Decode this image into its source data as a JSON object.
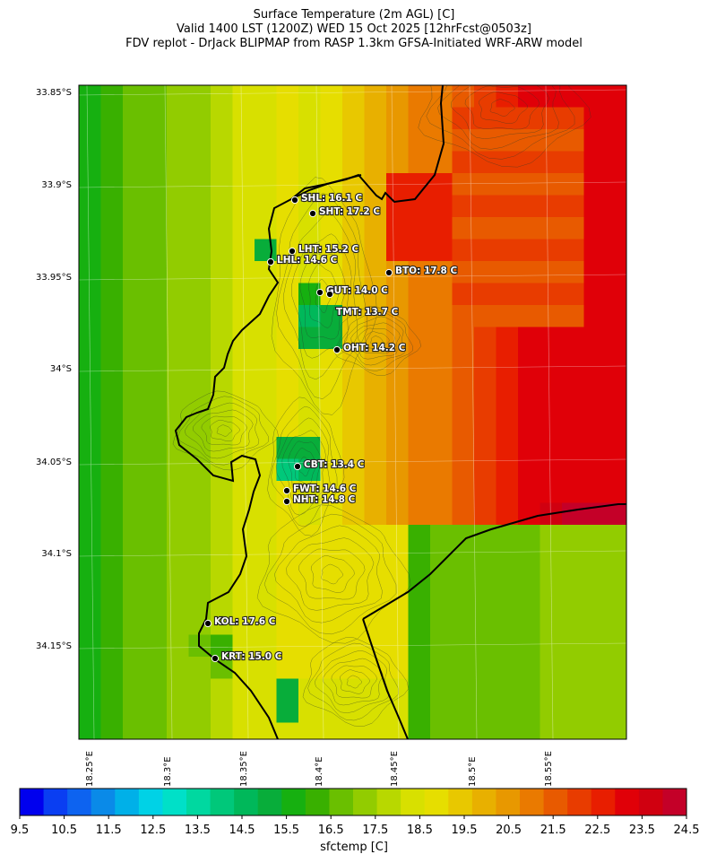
{
  "title": {
    "line1": "Surface Temperature (2m AGL) [C]",
    "line2": "Valid 1400 LST (1200Z) WED 15 Oct 2025 [12hrFcst@0503z]",
    "line3": "FDV replot - DrJack BLIPMAP from RASP 1.3km GFSA-Initiated WRF-ARW model"
  },
  "map": {
    "lat_ticks": [
      "33.85°S",
      "33.9°S",
      "33.95°S",
      "34°S",
      "34.05°S",
      "34.1°S",
      "34.15°S"
    ],
    "lon_ticks": [
      "18.25°E",
      "18.3°E",
      "18.35°E",
      "18.4°E",
      "18.45°E",
      "18.5°E",
      "18.55°E"
    ],
    "stations": [
      {
        "id": "SHL",
        "label": "SHL: 16.1 C",
        "temp": 16.1
      },
      {
        "id": "SHT",
        "label": "SHT: 17.2 C",
        "temp": 17.2
      },
      {
        "id": "LHT",
        "label": "LHT: 15.2 C",
        "temp": 15.2
      },
      {
        "id": "LHL",
        "label": "LHL: 14.6 C",
        "temp": 14.6
      },
      {
        "id": "BTO",
        "label": "BTO: 17.8 C",
        "temp": 17.8
      },
      {
        "id": "GUT",
        "label": "GUT: 14.0 C",
        "temp": 14.0
      },
      {
        "id": "TMT",
        "label": "TMT: 13.7 C",
        "temp": 13.7
      },
      {
        "id": "OHT",
        "label": "OHT: 14.2 C",
        "temp": 14.2
      },
      {
        "id": "CBT",
        "label": "CBT: 13.4 C",
        "temp": 13.4
      },
      {
        "id": "FWT",
        "label": "FWT: 14.6 C",
        "temp": 14.6
      },
      {
        "id": "NHT",
        "label": "NHT: 14.8 C",
        "temp": 14.8
      },
      {
        "id": "KOL",
        "label": "KOL: 17.6 C",
        "temp": 17.6
      },
      {
        "id": "KRT",
        "label": "KRT: 15.0 C",
        "temp": 15.0
      }
    ]
  },
  "colorbar": {
    "title": "sfctemp [C]",
    "tick_labels": [
      "9.5",
      "10.5",
      "11.5",
      "12.5",
      "13.5",
      "14.5",
      "15.5",
      "16.5",
      "17.5",
      "18.5",
      "19.5",
      "20.5",
      "21.5",
      "22.5",
      "23.5",
      "24.5"
    ],
    "colors": [
      "#0000ee",
      "#0a3ef2",
      "#0d63f0",
      "#0a8ae8",
      "#00b0e8",
      "#00d2e6",
      "#00e0c8",
      "#00d8a0",
      "#00c87a",
      "#00b85a",
      "#08ad3a",
      "#16b010",
      "#39b000",
      "#6abf00",
      "#92cc00",
      "#b8d800",
      "#d8e000",
      "#e6de00",
      "#e8c800",
      "#e8b000",
      "#e89800",
      "#ea7a00",
      "#e85a00",
      "#e83c00",
      "#e81e00",
      "#e00008",
      "#d00010",
      "#c40028"
    ]
  }
}
